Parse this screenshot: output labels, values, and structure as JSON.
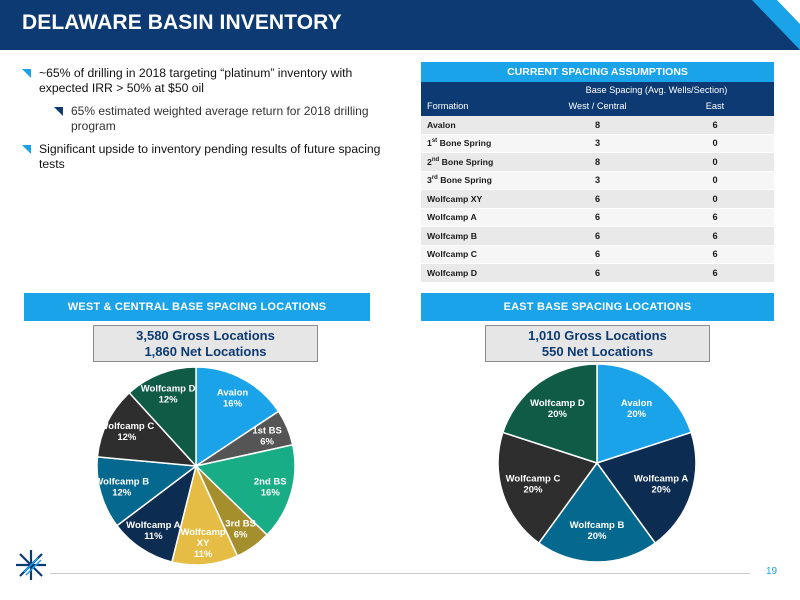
{
  "header": {
    "title": "DELAWARE BASIN INVENTORY"
  },
  "bullets": {
    "b1": "~65% of drilling in 2018 targeting “platinum” inventory with expected IRR > 50% at $50 oil",
    "b1_sub": "65% estimated weighted average return for 2018 drilling program",
    "b2": "Significant upside to inventory pending results of future spacing tests"
  },
  "table": {
    "title": "CURRENT SPACING ASSUMPTIONS",
    "group_header": "Base Spacing (Avg. Wells/Section)",
    "col_formation": "Formation",
    "col_west": "West / Central",
    "col_east": "East",
    "rows": [
      {
        "name": "Avalon",
        "west": "8",
        "east": "6"
      },
      {
        "name": "Bone Spring",
        "prefix": "1",
        "sup": "st",
        "west": "3",
        "east": "0"
      },
      {
        "name": "Bone Spring",
        "prefix": "2",
        "sup": "nd",
        "west": "8",
        "east": "0"
      },
      {
        "name": "Bone Spring",
        "prefix": "3",
        "sup": "rd",
        "west": "3",
        "east": "0"
      },
      {
        "name": "Wolfcamp XY",
        "west": "6",
        "east": "0"
      },
      {
        "name": "Wolfcamp A",
        "west": "6",
        "east": "6"
      },
      {
        "name": "Wolfcamp B",
        "west": "6",
        "east": "6"
      },
      {
        "name": "Wolfcamp C",
        "west": "6",
        "east": "6"
      },
      {
        "name": "Wolfcamp D",
        "west": "6",
        "east": "6"
      }
    ]
  },
  "west": {
    "section_title": "WEST & CENTRAL BASE SPACING LOCATIONS",
    "gross": "3,580 Gross Locations",
    "net": "1,860 Net Locations"
  },
  "east": {
    "section_title": "EAST BASE SPACING LOCATIONS",
    "gross": "1,010 Gross Locations",
    "net": "550 Net Locations"
  },
  "chart_data": [
    {
      "type": "pie",
      "categories": [
        "Avalon",
        "1st BS",
        "2nd BS",
        "3rd BS",
        "Wolfcamp XY",
        "Wolfcamp A",
        "Wolfcamp B",
        "Wolfcamp C",
        "Wolfcamp D"
      ],
      "values": [
        16,
        6,
        16,
        6,
        11,
        11,
        12,
        12,
        12
      ],
      "labels": [
        "Avalon\n16%",
        "1st BS\n6%",
        "2nd BS\n16%",
        "3rd BS\n6%",
        "Wolfcamp\nXY\n11%",
        "Wolfcamp A\n11%",
        "Wolfcamp B\n12%",
        "Wolfcamp C\n12%",
        "Wolfcamp D\n12%"
      ],
      "colors": [
        "#1aa3e8",
        "#555555",
        "#18ad84",
        "#a58e2c",
        "#e5bd45",
        "#0d2c52",
        "#05698f",
        "#2e2e2e",
        "#0f5b46"
      ]
    },
    {
      "type": "pie",
      "categories": [
        "Avalon",
        "Wolfcamp A",
        "Wolfcamp B",
        "Wolfcamp C",
        "Wolfcamp D"
      ],
      "values": [
        20,
        20,
        20,
        20,
        20
      ],
      "labels": [
        "Avalon\n20%",
        "Wolfcamp A\n20%",
        "Wolfcamp B\n20%",
        "Wolfcamp C\n20%",
        "Wolfcamp D\n20%"
      ],
      "colors": [
        "#1aa3e8",
        "#0d2c52",
        "#05698f",
        "#2e2e2e",
        "#0f5b46"
      ]
    }
  ],
  "footer": {
    "page_number": "19"
  }
}
